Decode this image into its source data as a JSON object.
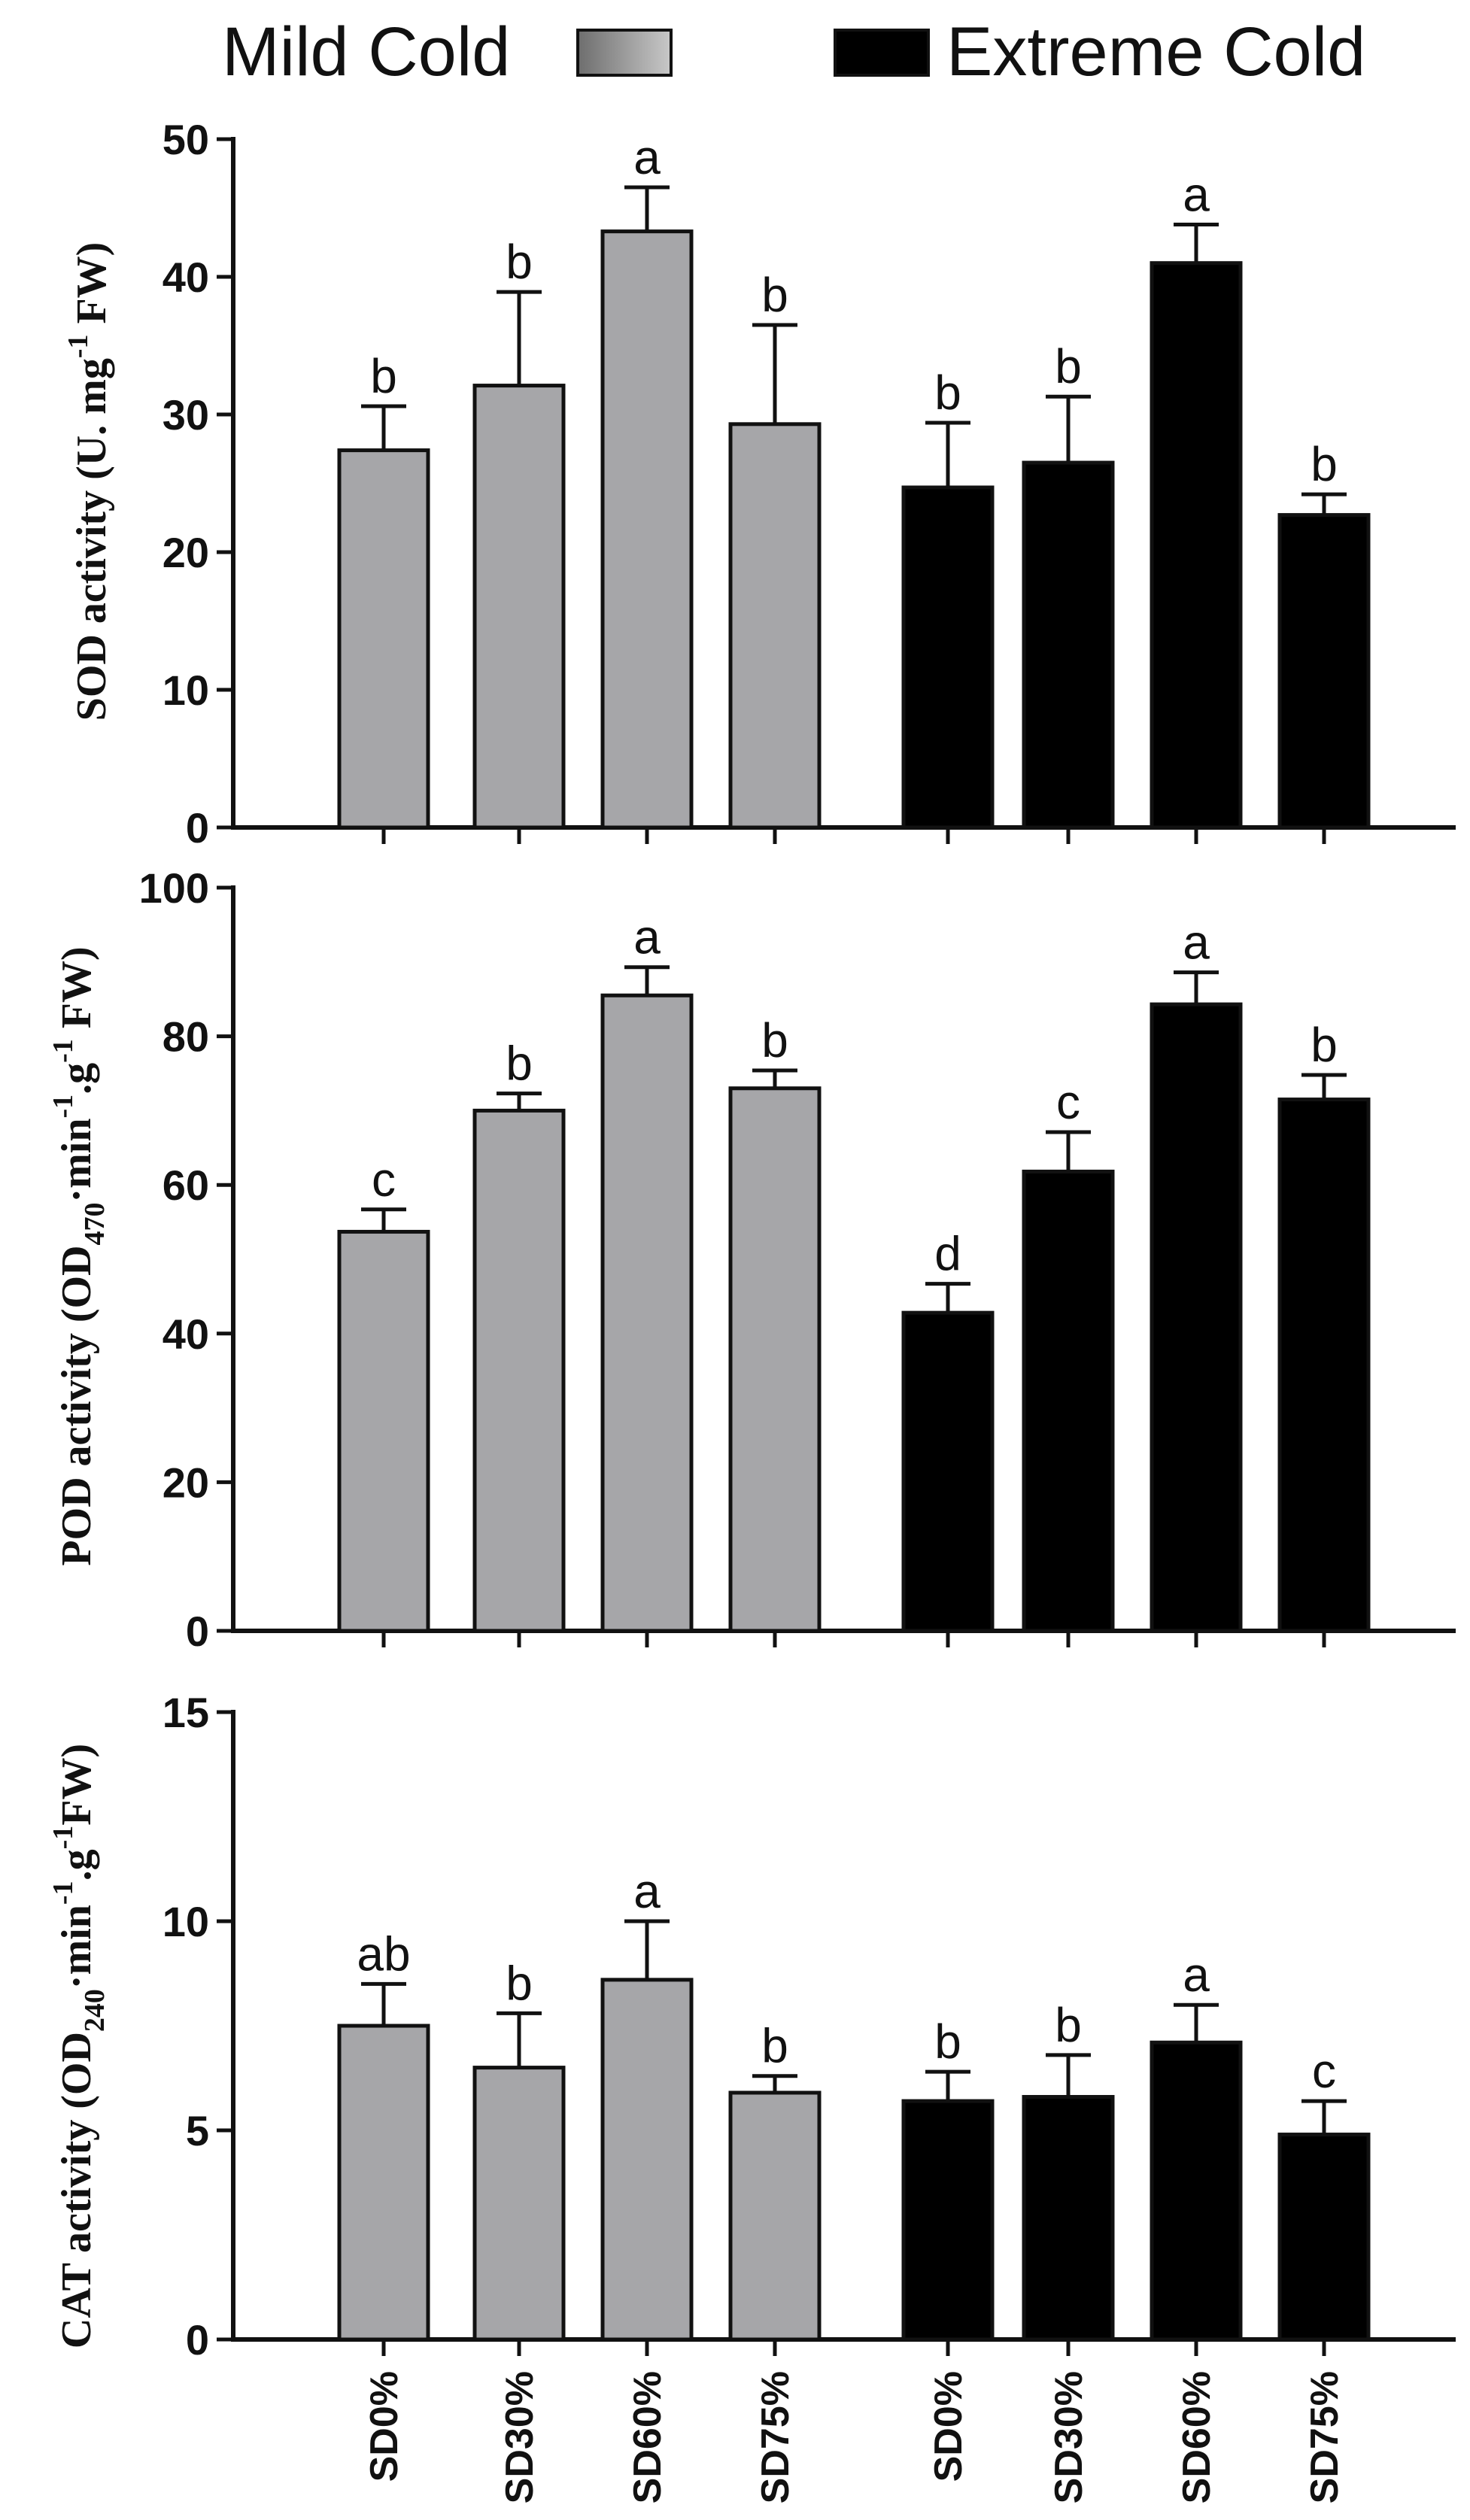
{
  "legend": {
    "mild_label": "Mild Cold",
    "extreme_label": "Extreme Cold"
  },
  "colors": {
    "mild": "#a6a6a9",
    "extreme": "#000000",
    "mild_legend_light": "#c8c8c8",
    "mild_legend_dark": "#6e6e6e"
  },
  "chart_data": [
    {
      "type": "bar",
      "ylabel_main": "SOD activity (U. mg",
      "ylabel_sup": "-1",
      "ylabel_end": " FW)",
      "ylim": [
        0,
        50
      ],
      "yticks": [
        0,
        10,
        20,
        30,
        40,
        50
      ],
      "categories": [
        "SD0%",
        "SD30%",
        "SD60%",
        "SD75%"
      ],
      "series": [
        {
          "name": "Mild Cold",
          "values": [
            27.4,
            32.1,
            43.3,
            29.3
          ],
          "errors": [
            3.2,
            6.8,
            3.2,
            7.2
          ],
          "letters": [
            "b",
            "b",
            "a",
            "b"
          ]
        },
        {
          "name": "Extreme Cold",
          "values": [
            24.7,
            26.5,
            41.0,
            22.7
          ],
          "errors": [
            4.7,
            4.8,
            2.8,
            1.5
          ],
          "letters": [
            "b",
            "b",
            "a",
            "b"
          ]
        }
      ]
    },
    {
      "type": "bar",
      "ylabel_main": "POD activity (OD",
      "ylabel_sub": "470",
      "ylabel_mid": "·min",
      "ylabel_sup": "-1",
      "ylabel_end": ".g",
      "ylabel_sup2": "-1",
      "ylabel_end2": " FW)",
      "ylim": [
        0,
        100
      ],
      "yticks": [
        0,
        20,
        40,
        60,
        80,
        100
      ],
      "categories": [
        "SD0%",
        "SD30%",
        "SD60%",
        "SD75%"
      ],
      "series": [
        {
          "name": "Mild Cold",
          "values": [
            53.7,
            70.0,
            85.5,
            73.0
          ],
          "errors": [
            3.0,
            2.3,
            3.8,
            2.4
          ],
          "letters": [
            "c",
            "b",
            "a",
            "b"
          ]
        },
        {
          "name": "Extreme Cold",
          "values": [
            42.8,
            61.8,
            84.3,
            71.5
          ],
          "errors": [
            3.9,
            5.3,
            4.3,
            3.3
          ],
          "letters": [
            "d",
            "c",
            "a",
            "b"
          ]
        }
      ]
    },
    {
      "type": "bar",
      "ylabel_main": "CAT activity (OD",
      "ylabel_sub": "240",
      "ylabel_mid": "·min",
      "ylabel_sup": "-1",
      "ylabel_end": ".g",
      "ylabel_sup2": "-1",
      "ylabel_end2": "FW)",
      "ylim": [
        0,
        15
      ],
      "yticks": [
        0,
        5,
        10,
        15
      ],
      "categories": [
        "SD0%",
        "SD30%",
        "SD60%",
        "SD75%"
      ],
      "series": [
        {
          "name": "Mild Cold",
          "values": [
            7.5,
            6.5,
            8.6,
            5.9
          ],
          "errors": [
            1.0,
            1.3,
            1.4,
            0.4
          ],
          "letters": [
            "ab",
            "b",
            "a",
            "b"
          ]
        },
        {
          "name": "Extreme Cold",
          "values": [
            5.7,
            5.8,
            7.1,
            4.9
          ],
          "errors": [
            0.7,
            1.0,
            0.9,
            0.8
          ],
          "letters": [
            "b",
            "b",
            "a",
            "c"
          ]
        }
      ]
    }
  ]
}
